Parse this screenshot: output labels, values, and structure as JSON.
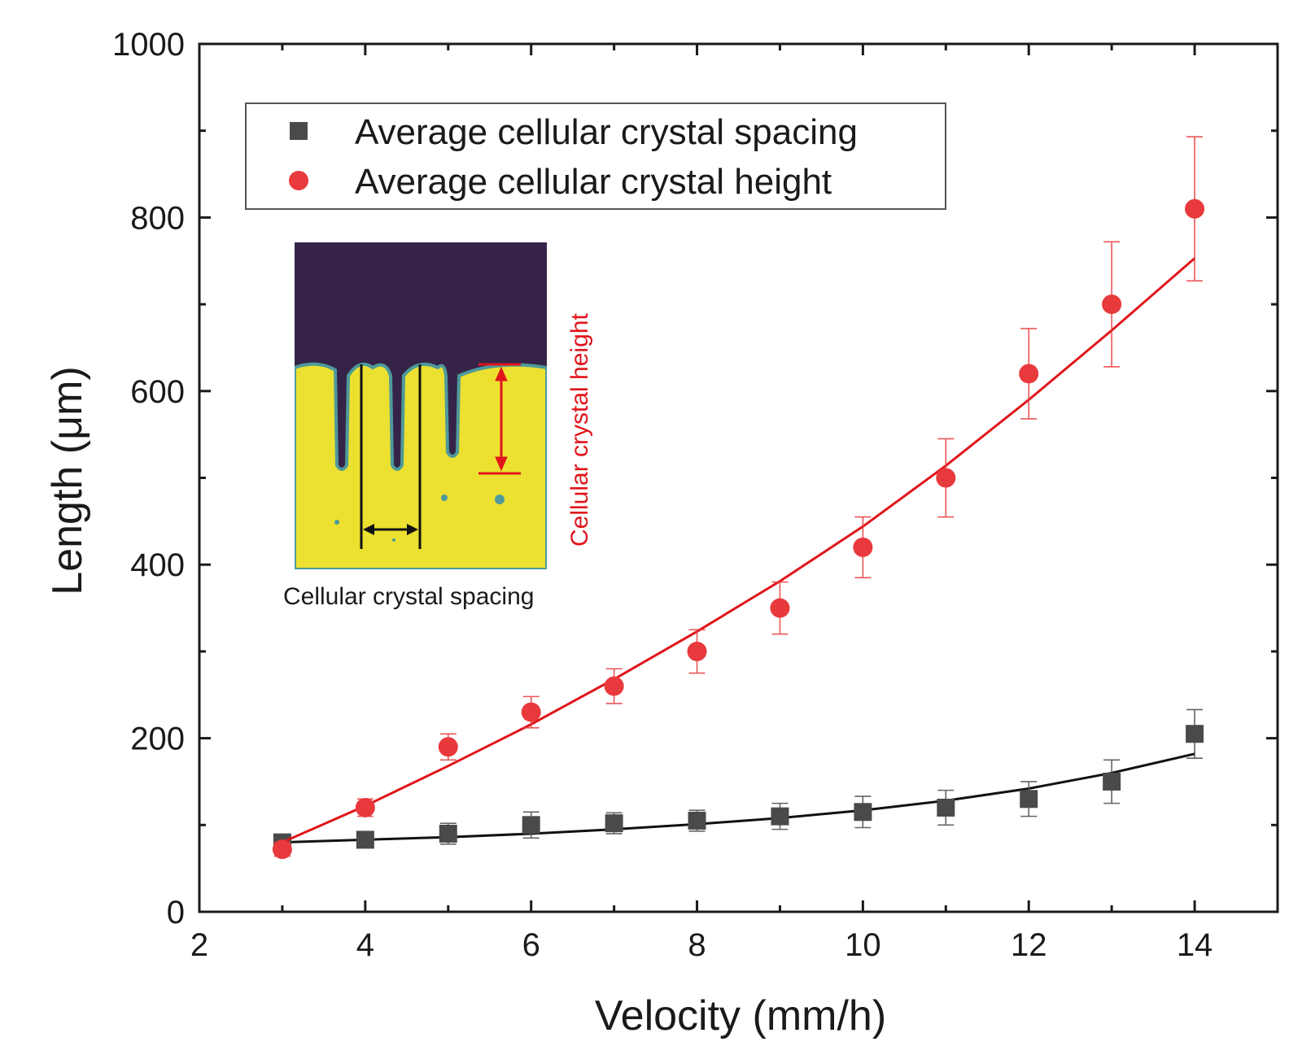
{
  "chart_data": {
    "type": "scatter",
    "title": "",
    "xlabel": "Velocity (mm/h)",
    "ylabel": "Length (μm)",
    "xlim": [
      2,
      15
    ],
    "ylim": [
      0,
      1000
    ],
    "x_ticks": [
      2,
      4,
      6,
      8,
      10,
      12,
      14
    ],
    "y_ticks": [
      0,
      200,
      400,
      600,
      800,
      1000
    ],
    "grid": false,
    "legend_position": "top-left",
    "series": [
      {
        "name": "Average cellular crystal spacing",
        "marker": "square",
        "color": "#4a4a4a",
        "fit_color": "#111111",
        "x": [
          3,
          4,
          5,
          6,
          7,
          8,
          9,
          10,
          11,
          12,
          13,
          14
        ],
        "y": [
          80,
          83,
          90,
          100,
          102,
          105,
          110,
          115,
          120,
          130,
          150,
          205
        ],
        "error": [
          5,
          8,
          12,
          15,
          12,
          12,
          15,
          18,
          20,
          20,
          25,
          28
        ],
        "fit_y": [
          80,
          83,
          86,
          90,
          95,
          101,
          108,
          117,
          128,
          142,
          160,
          182
        ]
      },
      {
        "name": "Average cellular crystal height",
        "marker": "circle",
        "color": "#e8393c",
        "fit_color": "#e0151b",
        "x": [
          3,
          4,
          5,
          6,
          7,
          8,
          9,
          10,
          11,
          12,
          13,
          14
        ],
        "y": [
          72,
          120,
          190,
          230,
          260,
          300,
          350,
          420,
          500,
          620,
          700,
          810
        ],
        "error": [
          8,
          10,
          15,
          18,
          20,
          25,
          30,
          35,
          45,
          52,
          72,
          83
        ],
        "fit_y": [
          80,
          122,
          168,
          216,
          268,
          323,
          381,
          444,
          514,
          590,
          670,
          753
        ]
      }
    ],
    "inset": {
      "caption": "Cellular crystal spacing",
      "side_label": "Cellular crystal height",
      "colors": {
        "liquid": "#352448",
        "solid": "#ece030",
        "interface": "#4e9a9a",
        "marker": "#e0151b"
      }
    }
  }
}
